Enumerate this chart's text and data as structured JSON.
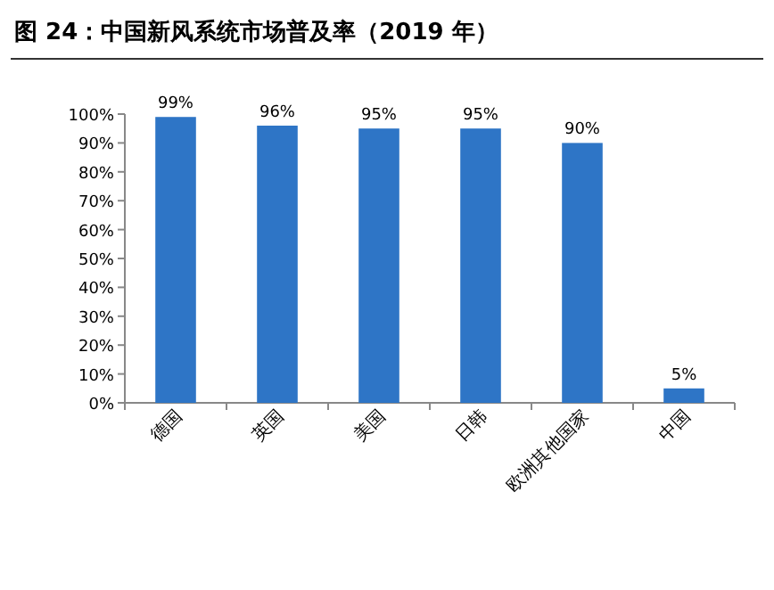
{
  "chart_data": {
    "type": "bar",
    "title": "图 24：中国新风系统市场普及率（2019 年）",
    "categories": [
      "德国",
      "英国",
      "美国",
      "日韩",
      "欧洲其他国家",
      "中国"
    ],
    "values": [
      99,
      96,
      95,
      95,
      90,
      5
    ],
    "value_labels": [
      "99%",
      "96%",
      "95%",
      "95%",
      "90%",
      "5%"
    ],
    "color": "#2e75c6",
    "ylim": [
      0,
      100
    ],
    "yticks": [
      {
        "value": 0,
        "label": "0%"
      },
      {
        "value": 10,
        "label": "10%"
      },
      {
        "value": 20,
        "label": "20%"
      },
      {
        "value": 30,
        "label": "30%"
      },
      {
        "value": 40,
        "label": "40%"
      },
      {
        "value": 50,
        "label": "50%"
      },
      {
        "value": 60,
        "label": "60%"
      },
      {
        "value": 70,
        "label": "70%"
      },
      {
        "value": 80,
        "label": "80%"
      },
      {
        "value": 90,
        "label": "90%"
      },
      {
        "value": 100,
        "label": "100%"
      }
    ],
    "grid": false
  }
}
